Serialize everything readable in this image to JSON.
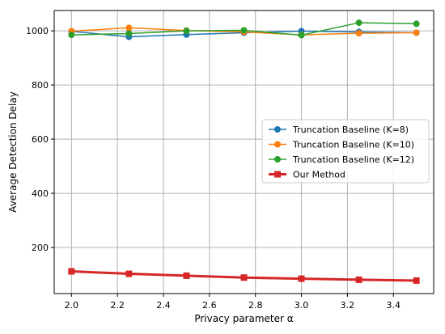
{
  "chart_data": {
    "type": "line",
    "title": "",
    "xlabel": "Privacy parameter α",
    "ylabel": "Average Detection Delay",
    "xlim": [
      1.925,
      3.575
    ],
    "ylim": [
      30,
      1075
    ],
    "x_ticks": [
      2.0,
      2.2,
      2.4,
      2.6,
      2.8,
      3.0,
      3.2,
      3.4
    ],
    "x_tick_labels": [
      "2.0",
      "2.2",
      "2.4",
      "2.6",
      "2.8",
      "3.0",
      "3.2",
      "3.4"
    ],
    "y_ticks": [
      200,
      400,
      600,
      800,
      1000
    ],
    "y_tick_labels": [
      "200",
      "400",
      "600",
      "800",
      "1000"
    ],
    "grid": true,
    "legend_position": "center-right",
    "x": [
      2.0,
      2.25,
      2.5,
      2.75,
      3.0,
      3.25,
      3.5
    ],
    "series": [
      {
        "name": "Truncation Baseline (K=8)",
        "color": "#1f77b4",
        "marker": "circle",
        "values": [
          998,
          978,
          986,
          993,
          999,
          996,
          993
        ]
      },
      {
        "name": "Truncation Baseline (K=10)",
        "color": "#ff7f0e",
        "marker": "circle",
        "values": [
          999,
          1011,
          1001,
          996,
          985,
          991,
          993
        ]
      },
      {
        "name": "Truncation Baseline (K=12)",
        "color": "#2ca02c",
        "marker": "circle",
        "values": [
          985,
          990,
          1000,
          1002,
          984,
          1030,
          1026
        ]
      },
      {
        "name": "Our Method",
        "color": "#d62728",
        "marker": "square",
        "values": [
          112,
          103,
          96,
          89,
          85,
          81,
          78
        ]
      }
    ]
  }
}
